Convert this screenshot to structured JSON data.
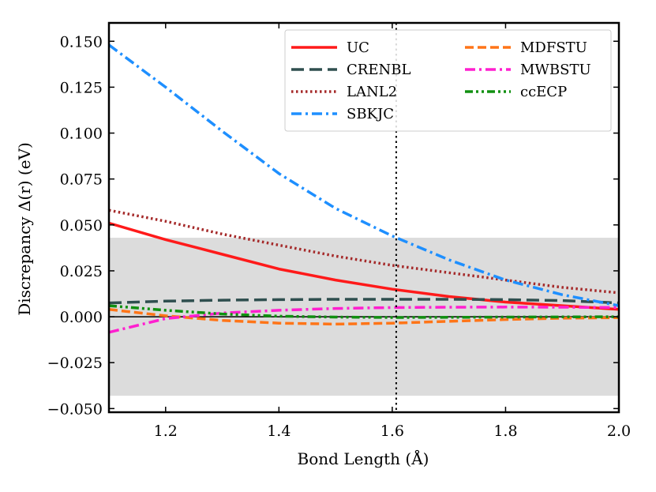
{
  "chart_data": {
    "type": "line",
    "xlabel": "Bond Length (Å)",
    "ylabel": "Discrepancy Δ(r) (eV)",
    "xlim": [
      1.1,
      2.0
    ],
    "ylim": [
      -0.052,
      0.16
    ],
    "x_ticks": [
      1.2,
      1.4,
      1.6,
      1.8,
      2.0
    ],
    "x_tick_labels": [
      "1.2",
      "1.4",
      "1.6",
      "1.8",
      "2.0"
    ],
    "y_ticks": [
      -0.05,
      -0.025,
      0.0,
      0.025,
      0.05,
      0.075,
      0.1,
      0.125,
      0.15
    ],
    "y_tick_labels": [
      "−0.050",
      "−0.025",
      "0.000",
      "0.025",
      "0.050",
      "0.075",
      "0.100",
      "0.125",
      "0.150"
    ],
    "shaded_band": {
      "y_min": -0.043,
      "y_max": 0.043,
      "color": "#dcdcdc"
    },
    "vertical_line": {
      "x": 1.607,
      "style": "dotted",
      "color": "#000000"
    },
    "zero_line": {
      "y": 0.0,
      "color": "#000000"
    },
    "legend_position": "top-right",
    "legend_columns": 2,
    "series": [
      {
        "name": "UC",
        "color": "#ff1a1a",
        "dash": "solid",
        "x": [
          1.1,
          1.2,
          1.3,
          1.4,
          1.5,
          1.6,
          1.7,
          1.8,
          1.9,
          2.0
        ],
        "y": [
          0.051,
          0.042,
          0.034,
          0.026,
          0.02,
          0.015,
          0.011,
          0.008,
          0.006,
          0.004
        ]
      },
      {
        "name": "CRENBL",
        "color": "#2f4f4f",
        "dash": "longdash",
        "x": [
          1.1,
          1.2,
          1.3,
          1.4,
          1.5,
          1.6,
          1.7,
          1.8,
          1.9,
          2.0
        ],
        "y": [
          0.0075,
          0.0085,
          0.009,
          0.0093,
          0.0095,
          0.0095,
          0.0095,
          0.0093,
          0.0088,
          0.0075
        ]
      },
      {
        "name": "LANL2",
        "color": "#a52a2a",
        "dash": "dotted",
        "x": [
          1.1,
          1.2,
          1.3,
          1.4,
          1.5,
          1.6,
          1.7,
          1.8,
          1.9,
          2.0
        ],
        "y": [
          0.058,
          0.052,
          0.045,
          0.039,
          0.033,
          0.028,
          0.024,
          0.02,
          0.016,
          0.013
        ]
      },
      {
        "name": "SBKJC",
        "color": "#1e8fff",
        "dash": "dashdot",
        "x": [
          1.1,
          1.2,
          1.3,
          1.4,
          1.5,
          1.6,
          1.7,
          1.8,
          1.9,
          2.0
        ],
        "y": [
          0.148,
          0.125,
          0.101,
          0.078,
          0.059,
          0.044,
          0.031,
          0.02,
          0.012,
          0.006
        ]
      },
      {
        "name": "MDFSTU",
        "color": "#ff7518",
        "dash": "dashed",
        "x": [
          1.1,
          1.2,
          1.3,
          1.4,
          1.5,
          1.6,
          1.7,
          1.8,
          1.9,
          2.0
        ],
        "y": [
          0.004,
          0.0005,
          -0.002,
          -0.0035,
          -0.004,
          -0.0035,
          -0.0025,
          -0.0015,
          -0.0008,
          -0.0005
        ]
      },
      {
        "name": "MWBSTU",
        "color": "#ff1fcf",
        "dash": "dashdot",
        "x": [
          1.1,
          1.2,
          1.3,
          1.4,
          1.5,
          1.6,
          1.7,
          1.8,
          1.9,
          2.0
        ],
        "y": [
          -0.0085,
          -0.001,
          0.002,
          0.0035,
          0.0045,
          0.005,
          0.0052,
          0.0053,
          0.0052,
          0.005
        ]
      },
      {
        "name": "ccECP",
        "color": "#109010",
        "dash": "dashdotdot",
        "x": [
          1.1,
          1.2,
          1.3,
          1.4,
          1.5,
          1.6,
          1.7,
          1.8,
          1.9,
          2.0
        ],
        "y": [
          0.006,
          0.0035,
          0.0015,
          0.0003,
          -0.0002,
          -0.0004,
          -0.0003,
          -0.0002,
          -0.0001,
          0.0
        ]
      }
    ]
  }
}
